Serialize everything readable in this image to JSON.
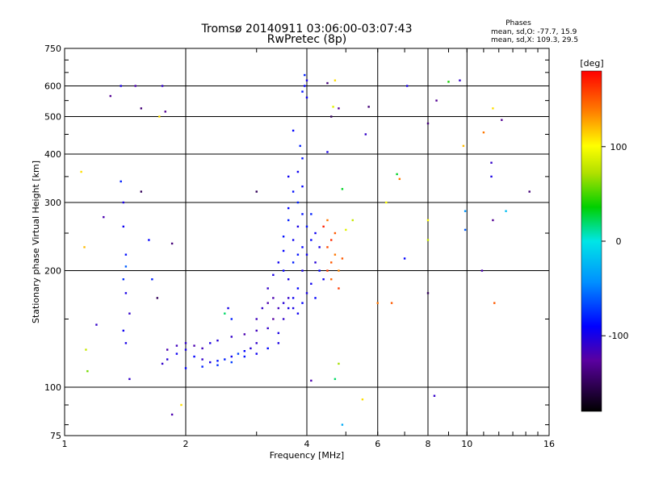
{
  "chart_data": {
    "type": "scatter",
    "title": "Tromsø 20140911 03:06:00-03:07:43",
    "subtitle": "RwPretec (8p)",
    "xlabel": "Frequency [MHz]",
    "ylabel": "Stationary phase Virtual Height [km]",
    "x_scale": "log",
    "y_scale": "log",
    "xlim": [
      1,
      16
    ],
    "ylim": [
      75,
      750
    ],
    "x_ticks": [
      1,
      2,
      4,
      6,
      8,
      10,
      16
    ],
    "x_tick_labels": [
      "1",
      "2",
      "4",
      "6",
      "8",
      "10",
      "16"
    ],
    "y_ticks": [
      75,
      100,
      200,
      300,
      400,
      500,
      600,
      750
    ],
    "y_tick_labels": [
      "75",
      "100",
      "200",
      "300",
      "400",
      "500",
      "600",
      "750"
    ],
    "grid": true,
    "phase_box": {
      "heading": "Phases",
      "line1": "mean, sd,O: -77.7, 15.9",
      "line2": "mean, sd,X: 109.3, 29.5"
    },
    "colorbar": {
      "label": "[deg]",
      "ticks": [
        100,
        0,
        -100
      ],
      "tick_labels": [
        "100",
        "0",
        "-100"
      ],
      "range": [
        -180,
        180
      ]
    },
    "points": [
      [
        1.75,
        115,
        -110
      ],
      [
        1.8,
        118,
        -105
      ],
      [
        1.9,
        122,
        -95
      ],
      [
        2.0,
        125,
        -100
      ],
      [
        2.1,
        120,
        -90
      ],
      [
        2.2,
        118,
        -110
      ],
      [
        2.3,
        116,
        -100
      ],
      [
        2.4,
        117,
        -85
      ],
      [
        2.5,
        118,
        -80
      ],
      [
        2.6,
        120,
        -95
      ],
      [
        2.7,
        122,
        -70
      ],
      [
        2.8,
        124,
        -90
      ],
      [
        2.9,
        126,
        -105
      ],
      [
        3.0,
        130,
        -110
      ],
      [
        1.8,
        125,
        -120
      ],
      [
        1.9,
        128,
        -115
      ],
      [
        2.0,
        130,
        -110
      ],
      [
        2.1,
        128,
        -120
      ],
      [
        2.2,
        126,
        -115
      ],
      [
        2.3,
        130,
        -100
      ],
      [
        2.4,
        132,
        -105
      ],
      [
        2.6,
        135,
        -110
      ],
      [
        2.8,
        137,
        -120
      ],
      [
        3.0,
        140,
        -115
      ],
      [
        3.2,
        142,
        -110
      ],
      [
        3.4,
        138,
        -100
      ],
      [
        2.0,
        112,
        -90
      ],
      [
        2.2,
        113,
        -80
      ],
      [
        2.4,
        114,
        -75
      ],
      [
        2.6,
        116,
        -70
      ],
      [
        2.8,
        120,
        -85
      ],
      [
        3.0,
        122,
        -95
      ],
      [
        3.2,
        126,
        -90
      ],
      [
        3.4,
        130,
        -100
      ],
      [
        3.5,
        150,
        -110
      ],
      [
        3.6,
        160,
        -100
      ],
      [
        3.7,
        170,
        -95
      ],
      [
        3.8,
        180,
        -90
      ],
      [
        3.6,
        190,
        -100
      ],
      [
        3.5,
        200,
        -90
      ],
      [
        3.7,
        210,
        -80
      ],
      [
        3.8,
        220,
        -85
      ],
      [
        3.9,
        230,
        -90
      ],
      [
        3.7,
        240,
        -95
      ],
      [
        3.8,
        260,
        -100
      ],
      [
        3.9,
        280,
        -85
      ],
      [
        3.8,
        300,
        -80
      ],
      [
        3.9,
        330,
        -90
      ],
      [
        3.8,
        360,
        -95
      ],
      [
        3.9,
        390,
        -85
      ],
      [
        3.85,
        420,
        -80
      ],
      [
        3.7,
        460,
        -90
      ],
      [
        3.3,
        170,
        -120
      ],
      [
        3.2,
        180,
        -110
      ],
      [
        3.3,
        195,
        -100
      ],
      [
        3.4,
        210,
        -95
      ],
      [
        3.5,
        225,
        -90
      ],
      [
        3.5,
        245,
        -85
      ],
      [
        3.6,
        270,
        -80
      ],
      [
        3.6,
        290,
        -90
      ],
      [
        3.7,
        320,
        -85
      ],
      [
        3.6,
        350,
        -95
      ],
      [
        3.0,
        150,
        -115
      ],
      [
        3.1,
        160,
        -110
      ],
      [
        3.2,
        165,
        -120
      ],
      [
        3.3,
        150,
        -125
      ],
      [
        3.4,
        160,
        -115
      ],
      [
        3.5,
        165,
        -105
      ],
      [
        3.6,
        170,
        -110
      ],
      [
        3.7,
        160,
        -100
      ],
      [
        3.8,
        155,
        -95
      ],
      [
        3.9,
        165,
        -90
      ],
      [
        4.0,
        175,
        -100
      ],
      [
        4.1,
        185,
        -95
      ],
      [
        4.2,
        170,
        -90
      ],
      [
        3.9,
        200,
        -100
      ],
      [
        4.0,
        220,
        -95
      ],
      [
        4.1,
        240,
        -90
      ],
      [
        4.0,
        260,
        -85
      ],
      [
        4.1,
        280,
        -80
      ],
      [
        4.2,
        250,
        -95
      ],
      [
        4.3,
        230,
        -100
      ],
      [
        4.2,
        210,
        -105
      ],
      [
        4.3,
        200,
        -90
      ],
      [
        4.4,
        190,
        -95
      ],
      [
        4.5,
        200,
        160
      ],
      [
        4.6,
        210,
        150
      ],
      [
        4.7,
        220,
        140
      ],
      [
        4.5,
        230,
        155
      ],
      [
        4.6,
        240,
        165
      ],
      [
        4.7,
        250,
        150
      ],
      [
        4.4,
        260,
        170
      ],
      [
        4.6,
        190,
        145
      ],
      [
        4.8,
        200,
        135
      ],
      [
        4.9,
        215,
        150
      ],
      [
        4.8,
        180,
        160
      ],
      [
        4.5,
        270,
        140
      ],
      [
        3.95,
        600,
        -90
      ],
      [
        4.0,
        620,
        -100
      ],
      [
        3.9,
        580,
        -85
      ],
      [
        4.0,
        560,
        -95
      ],
      [
        3.95,
        640,
        -80
      ],
      [
        1.1,
        360,
        110
      ],
      [
        1.12,
        230,
        120
      ],
      [
        1.13,
        125,
        80
      ],
      [
        1.14,
        110,
        60
      ],
      [
        1.2,
        145,
        -110
      ],
      [
        1.25,
        275,
        -120
      ],
      [
        1.3,
        565,
        -130
      ],
      [
        1.38,
        600,
        -100
      ],
      [
        1.38,
        340,
        -80
      ],
      [
        1.4,
        300,
        -100
      ],
      [
        1.4,
        260,
        -95
      ],
      [
        1.42,
        220,
        -85
      ],
      [
        1.42,
        205,
        -60
      ],
      [
        1.4,
        190,
        -75
      ],
      [
        1.42,
        175,
        -100
      ],
      [
        1.45,
        155,
        -110
      ],
      [
        1.4,
        140,
        -95
      ],
      [
        1.42,
        130,
        -100
      ],
      [
        1.45,
        105,
        -110
      ],
      [
        1.55,
        525,
        -140
      ],
      [
        1.55,
        320,
        -150
      ],
      [
        1.5,
        600,
        -120
      ],
      [
        1.62,
        240,
        -90
      ],
      [
        1.65,
        190,
        -80
      ],
      [
        1.7,
        170,
        -150
      ],
      [
        1.72,
        500,
        110
      ],
      [
        1.75,
        600,
        -110
      ],
      [
        1.78,
        515,
        -130
      ],
      [
        1.85,
        235,
        -140
      ],
      [
        1.85,
        85,
        -120
      ],
      [
        1.95,
        90,
        110
      ],
      [
        2.5,
        155,
        20
      ],
      [
        2.6,
        150,
        -80
      ],
      [
        2.55,
        160,
        -100
      ],
      [
        3.0,
        320,
        -150
      ],
      [
        4.1,
        104,
        -120
      ],
      [
        4.5,
        405,
        -100
      ],
      [
        4.5,
        610,
        -140
      ],
      [
        4.6,
        500,
        -150
      ],
      [
        4.7,
        620,
        110
      ],
      [
        4.65,
        530,
        90
      ],
      [
        4.8,
        525,
        -130
      ],
      [
        4.9,
        325,
        30
      ],
      [
        4.8,
        115,
        70
      ],
      [
        4.9,
        80,
        -30
      ],
      [
        4.7,
        105,
        20
      ],
      [
        5.0,
        255,
        90
      ],
      [
        5.2,
        270,
        80
      ],
      [
        5.5,
        93,
        110
      ],
      [
        5.6,
        450,
        -110
      ],
      [
        5.7,
        530,
        -140
      ],
      [
        6.0,
        165,
        140
      ],
      [
        6.3,
        300,
        100
      ],
      [
        6.5,
        165,
        150
      ],
      [
        6.7,
        355,
        30
      ],
      [
        6.8,
        345,
        140
      ],
      [
        7.0,
        215,
        -90
      ],
      [
        7.1,
        600,
        -100
      ],
      [
        8.0,
        480,
        -140
      ],
      [
        8.0,
        270,
        100
      ],
      [
        8.0,
        240,
        80
      ],
      [
        8.0,
        175,
        -150
      ],
      [
        8.3,
        95,
        -110
      ],
      [
        8.4,
        550,
        -130
      ],
      [
        9.0,
        615,
        40
      ],
      [
        9.6,
        620,
        -110
      ],
      [
        9.8,
        420,
        120
      ],
      [
        9.9,
        285,
        -40
      ],
      [
        9.9,
        255,
        -60
      ],
      [
        10.9,
        200,
        -120
      ],
      [
        11.0,
        455,
        140
      ],
      [
        11.5,
        380,
        -110
      ],
      [
        11.6,
        270,
        -130
      ],
      [
        11.6,
        525,
        110
      ],
      [
        11.7,
        165,
        150
      ],
      [
        11.5,
        350,
        -100
      ],
      [
        12.2,
        490,
        -130
      ],
      [
        12.5,
        285,
        -20
      ],
      [
        14.3,
        320,
        -140
      ]
    ]
  }
}
